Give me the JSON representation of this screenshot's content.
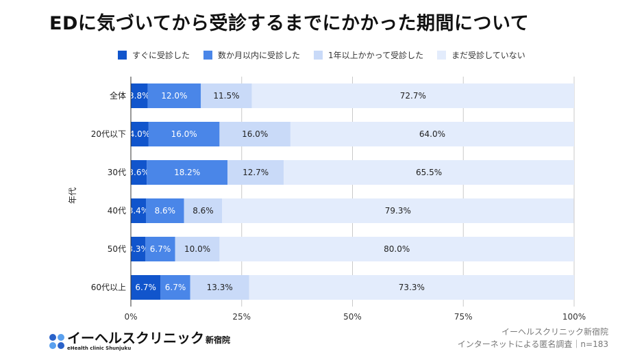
{
  "title": "EDに気づいてから受診するまでにかかった期間について",
  "colors": [
    "#1155cc",
    "#4a86e8",
    "#c9daf8",
    "#e3ecfc"
  ],
  "chart_data": {
    "type": "bar",
    "orientation": "horizontal",
    "stacked": true,
    "percent": true,
    "title": "EDに気づいてから受診するまでにかかった期間について",
    "ylabel": "年代",
    "xlabel": "",
    "xlim": [
      0,
      100
    ],
    "x_ticks": [
      "0%",
      "25%",
      "50%",
      "75%",
      "100%"
    ],
    "grid": true,
    "legend_position": "top",
    "categories": [
      "全体",
      "20代以下",
      "30代",
      "40代",
      "50代",
      "60代以上"
    ],
    "series": [
      {
        "name": "すぐに受診した",
        "values": [
          3.8,
          4.0,
          3.6,
          3.4,
          3.3,
          6.7
        ]
      },
      {
        "name": "数か月以内に受診した",
        "values": [
          12.0,
          16.0,
          18.2,
          8.6,
          6.7,
          6.7
        ]
      },
      {
        "name": "1年以上かかって受診した",
        "values": [
          11.5,
          16.0,
          12.7,
          8.6,
          10.0,
          13.3
        ]
      },
      {
        "name": "まだ受診していない",
        "values": [
          72.7,
          64.0,
          65.5,
          79.3,
          80.0,
          73.3
        ]
      }
    ]
  },
  "source": {
    "line1": "イーヘルスクリニック新宿院",
    "line2": "インターネットによる匿名調査｜n=183"
  },
  "logo": {
    "name": "イーヘルスクリニック",
    "location": "新宿院",
    "sub": "eHealth clinic Shunjuku"
  }
}
